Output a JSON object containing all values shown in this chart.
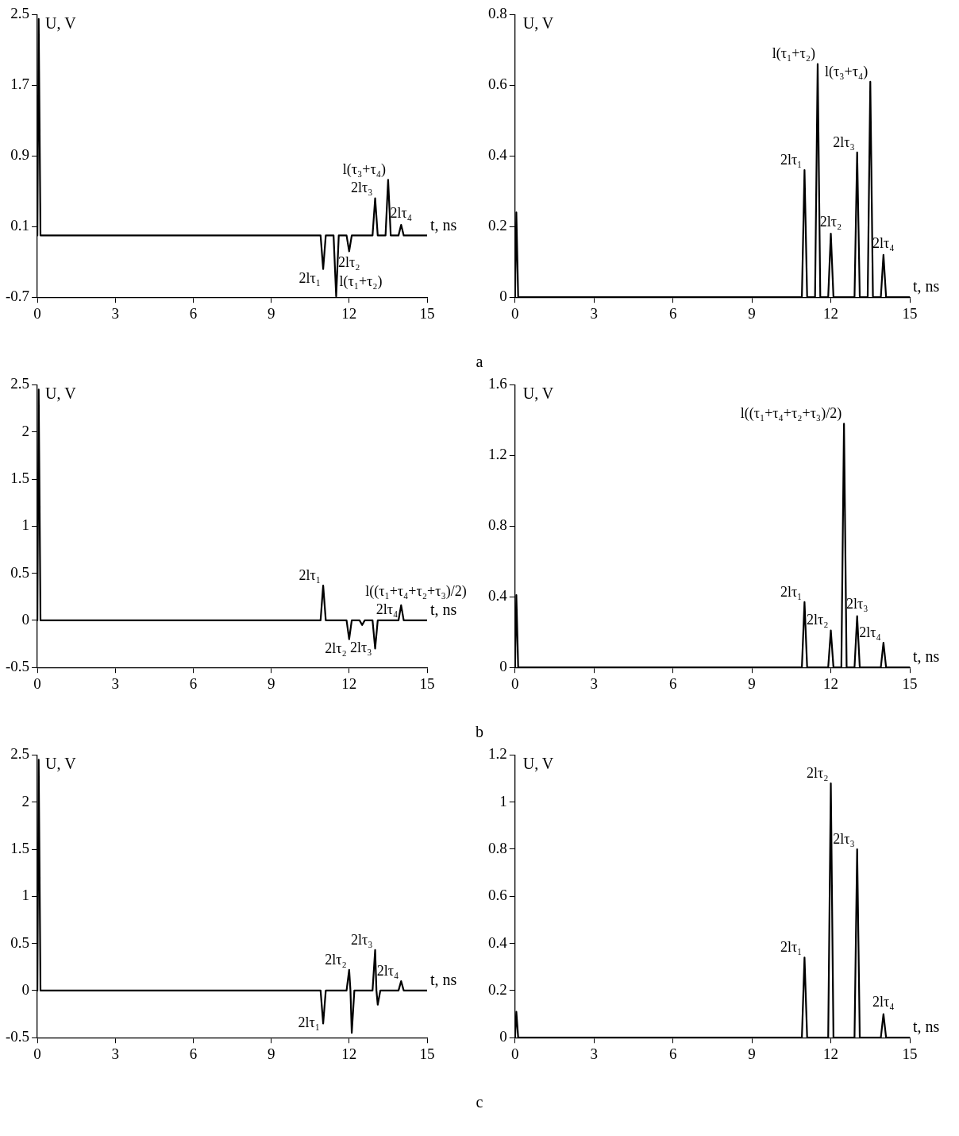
{
  "chart_data": [
    {
      "type": "line",
      "xlabel": "t, ns",
      "ylabel": "U, V",
      "xlim": [
        0,
        15
      ],
      "xticks": [
        0,
        3,
        6,
        9,
        12,
        15
      ],
      "ylim": [
        -0.7,
        2.5
      ],
      "yticks": [
        -0.7,
        0.1,
        0.9,
        1.7,
        2.5
      ],
      "marker": "none",
      "line_style": "solid",
      "series": [
        {
          "color": "#000000",
          "x": [
            0,
            0.05,
            0.12,
            10.9,
            11,
            11.1,
            11.4,
            11.5,
            11.6,
            11.9,
            12,
            12.1,
            12.9,
            13,
            13.1,
            13.4,
            13.5,
            13.6,
            13.9,
            14,
            14.1,
            15
          ],
          "values": [
            0,
            2.45,
            0,
            0,
            -0.38,
            0,
            0,
            -0.69,
            0,
            0,
            -0.18,
            0,
            0,
            0.42,
            0,
            0,
            0.63,
            0,
            0,
            0.12,
            0,
            0
          ]
        }
      ],
      "annotations": [
        {
          "text": "2lτ₁",
          "x": 11,
          "y": -0.38
        },
        {
          "text": "l(τ₁+τ₂)",
          "x": 11.5,
          "y": -0.69
        },
        {
          "text": "2lτ₂",
          "x": 12,
          "y": -0.18
        },
        {
          "text": "2lτ₃",
          "x": 13,
          "y": 0.42
        },
        {
          "text": "l(τ₃+τ₄)",
          "x": 13.5,
          "y": 0.63
        },
        {
          "text": "2lτ₄",
          "x": 14,
          "y": 0.12
        }
      ]
    },
    {
      "type": "line",
      "xlabel": "t, ns",
      "ylabel": "U, V",
      "xlim": [
        0,
        15
      ],
      "xticks": [
        0,
        3,
        6,
        9,
        12,
        15
      ],
      "ylim": [
        0,
        0.8
      ],
      "yticks": [
        0,
        0.2,
        0.4,
        0.6,
        0.8
      ],
      "marker": "none",
      "line_style": "solid",
      "series": [
        {
          "color": "#000000",
          "x": [
            0,
            0.05,
            0.12,
            10.9,
            11,
            11.1,
            11.4,
            11.5,
            11.6,
            11.9,
            12,
            12.1,
            12.9,
            13,
            13.1,
            13.4,
            13.5,
            13.6,
            13.9,
            14,
            14.1,
            15
          ],
          "values": [
            0,
            0.24,
            0,
            0,
            0.36,
            0,
            0,
            0.66,
            0,
            0,
            0.18,
            0,
            0,
            0.41,
            0,
            0,
            0.61,
            0,
            0,
            0.12,
            0,
            0
          ]
        }
      ],
      "annotations": [
        {
          "text": "2lτ₁",
          "x": 11,
          "y": 0.36
        },
        {
          "text": "l(τ₁+τ₂)",
          "x": 11.5,
          "y": 0.66
        },
        {
          "text": "2lτ₂",
          "x": 12,
          "y": 0.18
        },
        {
          "text": "2lτ₃",
          "x": 13,
          "y": 0.41
        },
        {
          "text": "l(τ₃+τ₄)",
          "x": 13.5,
          "y": 0.61
        },
        {
          "text": "2lτ₄",
          "x": 14,
          "y": 0.12
        },
        "a"
      ]
    },
    {
      "type": "line",
      "xlabel": "t, ns",
      "ylabel": "U, V",
      "xlim": [
        0,
        15
      ],
      "xticks": [
        0,
        3,
        6,
        9,
        12,
        15
      ],
      "ylim": [
        -0.5,
        2.5
      ],
      "yticks": [
        -0.5,
        0,
        0.5,
        1,
        1.5,
        2,
        2.5
      ],
      "marker": "none",
      "line_style": "solid",
      "series": [
        {
          "color": "#000000",
          "x": [
            0,
            0.05,
            0.12,
            10.9,
            11,
            11.1,
            11.9,
            12,
            12.1,
            12.4,
            12.5,
            12.6,
            12.9,
            13,
            13.1,
            13.9,
            14,
            14.1,
            15
          ],
          "values": [
            0,
            2.45,
            0,
            0,
            0.37,
            0,
            0,
            -0.2,
            0,
            0,
            -0.05,
            0,
            0,
            -0.3,
            0,
            0,
            0.16,
            0,
            0
          ]
        }
      ],
      "annotations": [
        {
          "text": "2lτ₁",
          "x": 11,
          "y": 0.37
        },
        {
          "text": "2lτ₂",
          "x": 12,
          "y": -0.2
        },
        {
          "text": "l((τ₁+τ₄+τ₂+τ₃)/2)",
          "x": 12.5,
          "y": -0.05
        },
        {
          "text": "2lτ₃",
          "x": 13,
          "y": -0.3
        },
        {
          "text": "2lτ₄",
          "x": 14,
          "y": 0.16
        }
      ]
    },
    {
      "type": "line",
      "xlabel": "t, ns",
      "ylabel": "U, V",
      "xlim": [
        0,
        15
      ],
      "xticks": [
        0,
        3,
        6,
        9,
        12,
        15
      ],
      "ylim": [
        0,
        1.6
      ],
      "yticks": [
        0,
        0.4,
        0.8,
        1.2,
        1.6
      ],
      "marker": "none",
      "line_style": "solid",
      "series": [
        {
          "color": "#000000",
          "x": [
            0,
            0.05,
            0.12,
            10.9,
            11,
            11.1,
            11.9,
            12,
            12.1,
            12.4,
            12.5,
            12.6,
            12.9,
            13,
            13.1,
            13.9,
            14,
            14.1,
            15
          ],
          "values": [
            0,
            0.41,
            0,
            0,
            0.37,
            0,
            0,
            0.21,
            0,
            0,
            1.38,
            0,
            0,
            0.29,
            0,
            0,
            0.14,
            0,
            0
          ]
        }
      ],
      "annotations": [
        {
          "text": "2lτ₁",
          "x": 11,
          "y": 0.37
        },
        {
          "text": "2lτ₂",
          "x": 12,
          "y": 0.21
        },
        {
          "text": "l((τ₁+τ₄+τ₂+τ₃)/2)",
          "x": 12.5,
          "y": 1.38
        },
        {
          "text": "2lτ₃",
          "x": 13,
          "y": 0.29
        },
        {
          "text": "2lτ₄",
          "x": 14,
          "y": 0.14
        },
        "b"
      ]
    },
    {
      "type": "line",
      "xlabel": "t, ns",
      "ylabel": "U, V",
      "xlim": [
        0,
        15
      ],
      "xticks": [
        0,
        3,
        6,
        9,
        12,
        15
      ],
      "ylim": [
        -0.5,
        2.5
      ],
      "yticks": [
        -0.5,
        0,
        0.5,
        1,
        1.5,
        2,
        2.5
      ],
      "marker": "none",
      "line_style": "solid",
      "series": [
        {
          "color": "#000000",
          "x": [
            0,
            0.05,
            0.12,
            10.9,
            11,
            11.1,
            11.9,
            12,
            12.05,
            12.1,
            12.2,
            12.9,
            13,
            13.05,
            13.1,
            13.2,
            13.9,
            14,
            14.1,
            15
          ],
          "values": [
            0,
            2.45,
            0,
            0,
            -0.35,
            0,
            0,
            0.22,
            0,
            -0.45,
            0,
            0,
            0.43,
            0,
            -0.15,
            0,
            0,
            0.1,
            0,
            0
          ]
        }
      ],
      "annotations": [
        {
          "text": "2lτ₁",
          "x": 11,
          "y": -0.35
        },
        {
          "text": "2lτ₂",
          "x": 12,
          "y": 0.22
        },
        {
          "text": "2lτ₃",
          "x": 13,
          "y": 0.43
        },
        {
          "text": "2lτ₄",
          "x": 14,
          "y": 0.1
        }
      ]
    },
    {
      "type": "line",
      "xlabel": "t, ns",
      "ylabel": "U, V",
      "xlim": [
        0,
        15
      ],
      "xticks": [
        0,
        3,
        6,
        9,
        12,
        15
      ],
      "ylim": [
        0,
        1.2
      ],
      "yticks": [
        0,
        0.2,
        0.4,
        0.6,
        0.8,
        1,
        1.2
      ],
      "marker": "none",
      "line_style": "solid",
      "series": [
        {
          "color": "#000000",
          "x": [
            0,
            0.05,
            0.12,
            10.9,
            11,
            11.1,
            11.9,
            12,
            12.1,
            12.9,
            13,
            13.1,
            13.9,
            14,
            14.1,
            15
          ],
          "values": [
            0,
            0.11,
            0,
            0,
            0.34,
            0,
            0,
            1.08,
            0,
            0,
            0.8,
            0,
            0,
            0.1,
            0,
            0
          ]
        }
      ],
      "annotations": [
        {
          "text": "2lτ₁",
          "x": 11,
          "y": 0.34
        },
        {
          "text": "2lτ₂",
          "x": 12,
          "y": 1.08
        },
        {
          "text": "2lτ₃",
          "x": 13,
          "y": 0.8
        },
        {
          "text": "2lτ₄",
          "x": 14,
          "y": 0.1
        },
        "c"
      ]
    }
  ]
}
